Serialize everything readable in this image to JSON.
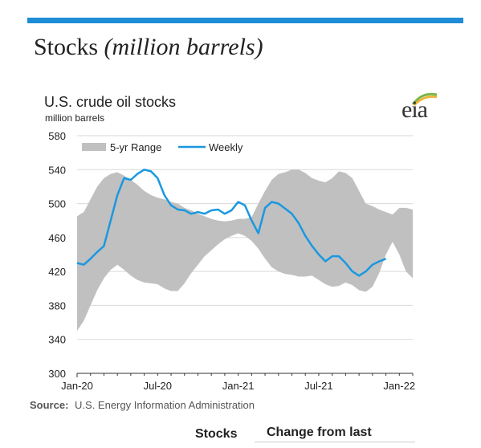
{
  "section": {
    "title": "Stocks",
    "units": "(million barrels)"
  },
  "logo": {
    "text": "eia"
  },
  "table": {
    "col_stocks": "Stocks",
    "col_change": "Change from last"
  },
  "chart_data": {
    "type": "area",
    "title": "U.S. crude oil stocks",
    "subtitle": "million barrels",
    "source_label": "Source:",
    "source_text": "U.S. Energy Information Administration",
    "legend": {
      "placement": "top-left",
      "range_label": "5-yr Range",
      "weekly_label": "Weekly"
    },
    "ylim": [
      300,
      580
    ],
    "yticks": [
      300,
      340,
      380,
      420,
      460,
      500,
      540,
      580
    ],
    "xlim": [
      0,
      25
    ],
    "xticks": [
      {
        "x": 0,
        "label": "Jan-20"
      },
      {
        "x": 6,
        "label": "Jul-20"
      },
      {
        "x": 12,
        "label": "Jan-21"
      },
      {
        "x": 18,
        "label": "Jul-21"
      },
      {
        "x": 24,
        "label": "Jan-22"
      }
    ],
    "colors": {
      "range": "#c0c0c0",
      "weekly": "#1a98e0",
      "grid": "#d9d9d9"
    },
    "range_x": [
      0,
      0.5,
      1,
      1.5,
      2,
      2.5,
      3,
      3.5,
      4,
      4.5,
      5,
      5.5,
      6,
      6.5,
      7,
      7.5,
      8,
      8.5,
      9,
      9.5,
      10,
      10.5,
      11,
      11.5,
      12,
      12.5,
      13,
      13.5,
      14,
      14.5,
      15,
      15.5,
      16,
      16.5,
      17,
      17.5,
      18,
      18.5,
      19,
      19.5,
      20,
      20.5,
      21,
      21.5,
      22,
      22.5,
      23,
      23.5,
      24,
      24.5,
      25
    ],
    "range_high": [
      485,
      490,
      505,
      520,
      530,
      535,
      537,
      533,
      528,
      522,
      515,
      510,
      507,
      505,
      502,
      500,
      495,
      492,
      488,
      485,
      482,
      480,
      479,
      480,
      482,
      482,
      484,
      500,
      515,
      528,
      535,
      537,
      540,
      540,
      536,
      530,
      527,
      525,
      530,
      538,
      536,
      530,
      515,
      500,
      497,
      493,
      490,
      487,
      495,
      495,
      493
    ],
    "range_low": [
      350,
      362,
      380,
      398,
      412,
      422,
      428,
      422,
      415,
      410,
      407,
      406,
      405,
      400,
      397,
      397,
      406,
      418,
      428,
      438,
      445,
      452,
      458,
      462,
      465,
      462,
      456,
      447,
      435,
      425,
      420,
      417,
      416,
      414,
      414,
      415,
      410,
      405,
      402,
      403,
      407,
      404,
      398,
      396,
      402,
      418,
      440,
      455,
      440,
      420,
      412
    ],
    "weekly_x": [
      0,
      0.5,
      1,
      1.5,
      2,
      2.5,
      3,
      3.5,
      4,
      4.5,
      5,
      5.5,
      6,
      6.5,
      7,
      7.5,
      8,
      8.5,
      9,
      9.5,
      10,
      10.5,
      11,
      11.5,
      12,
      12.5,
      13,
      13.5,
      14,
      14.5,
      15,
      15.5,
      16,
      16.5,
      17,
      17.5,
      18,
      18.5,
      19,
      19.5,
      20,
      20.5,
      21,
      21.5,
      22,
      22.5,
      23
    ],
    "weekly": [
      430,
      428,
      435,
      443,
      450,
      480,
      510,
      530,
      528,
      535,
      540,
      538,
      530,
      510,
      498,
      493,
      492,
      488,
      490,
      488,
      492,
      493,
      488,
      492,
      502,
      498,
      480,
      465,
      495,
      502,
      500,
      494,
      488,
      477,
      462,
      450,
      440,
      432,
      438,
      438,
      430,
      420,
      415,
      420,
      428,
      432,
      435
    ]
  }
}
